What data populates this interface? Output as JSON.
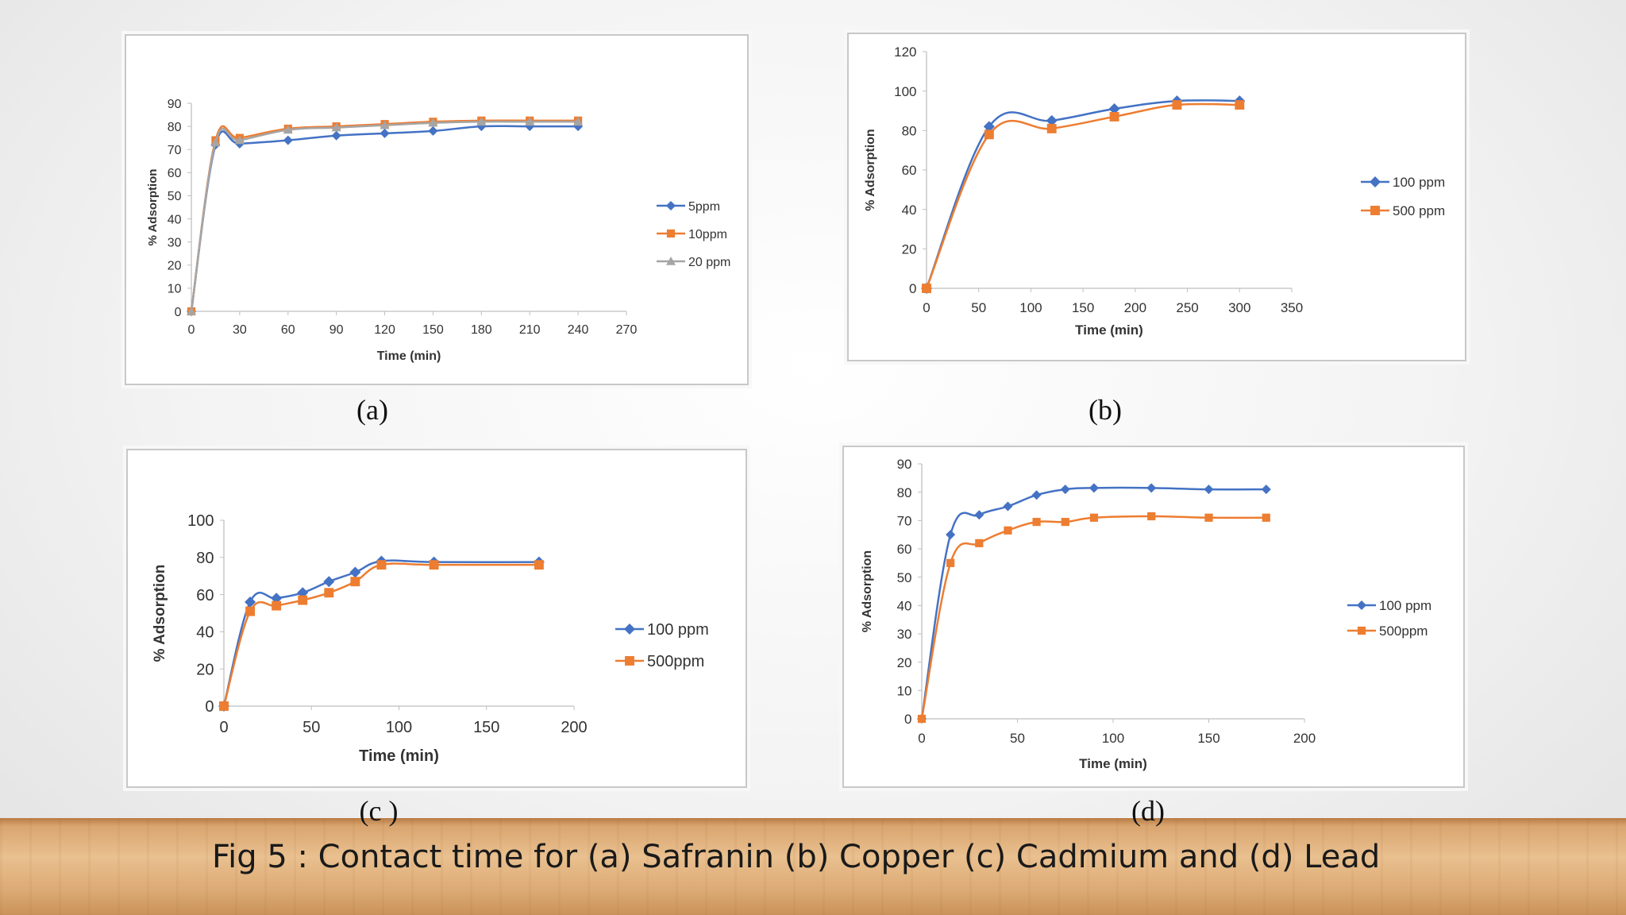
{
  "figure_caption": "Fig 5 : Contact time for (a) Safranin (b) Copper (c) Cadmium and (d) Lead",
  "panel_labels": [
    "(a)",
    "(b)",
    "(c )",
    "(d)"
  ],
  "colors": {
    "blue": "#4472c4",
    "orange": "#ed7d31",
    "gray": "#a5a5a5"
  },
  "chart_data": [
    {
      "type": "line",
      "xlabel": "Time (min)",
      "ylabel": "% Adsorption",
      "xlim": [
        0,
        270
      ],
      "ylim": [
        0,
        90
      ],
      "xticks": [
        0,
        30,
        60,
        90,
        120,
        150,
        180,
        210,
        240,
        270
      ],
      "yticks": [
        0,
        10,
        20,
        30,
        40,
        50,
        60,
        70,
        80,
        90
      ],
      "legend_position": "right",
      "series": [
        {
          "name": "5ppm",
          "marker": "diamond",
          "color": "#4472c4",
          "x": [
            0,
            15,
            30,
            60,
            90,
            120,
            150,
            180,
            210,
            240
          ],
          "y": [
            0,
            72,
            72.5,
            74,
            76,
            77,
            78,
            80,
            80,
            80
          ]
        },
        {
          "name": "10ppm",
          "marker": "square",
          "color": "#ed7d31",
          "x": [
            0,
            15,
            30,
            60,
            90,
            120,
            150,
            180,
            210,
            240
          ],
          "y": [
            0,
            74,
            75,
            79,
            80,
            81,
            82,
            82.5,
            82.5,
            82.5
          ]
        },
        {
          "name": "20 ppm",
          "marker": "triangle",
          "color": "#a5a5a5",
          "x": [
            0,
            15,
            30,
            60,
            90,
            120,
            150,
            180,
            210,
            240
          ],
          "y": [
            0,
            73,
            74,
            78.5,
            79.5,
            80.5,
            81.5,
            82,
            82,
            82
          ]
        }
      ]
    },
    {
      "type": "line",
      "xlabel": "Time (min)",
      "ylabel": "% Adsorption",
      "xlim": [
        0,
        350
      ],
      "ylim": [
        0,
        120
      ],
      "xticks": [
        0,
        50,
        100,
        150,
        200,
        250,
        300,
        350
      ],
      "yticks": [
        0,
        20,
        40,
        60,
        80,
        100,
        120
      ],
      "legend_position": "right",
      "series": [
        {
          "name": "100 ppm",
          "marker": "diamond",
          "color": "#4472c4",
          "x": [
            0,
            60,
            120,
            180,
            240,
            300
          ],
          "y": [
            0,
            82,
            85,
            91,
            95,
            95
          ]
        },
        {
          "name": "500 ppm",
          "marker": "square",
          "color": "#ed7d31",
          "x": [
            0,
            60,
            120,
            180,
            240,
            300
          ],
          "y": [
            0,
            78,
            81,
            87,
            93,
            93
          ]
        }
      ]
    },
    {
      "type": "line",
      "xlabel": "Time (min)",
      "ylabel": "% Adsorption",
      "xlim": [
        0,
        200
      ],
      "ylim": [
        0,
        100
      ],
      "xticks": [
        0,
        50,
        100,
        150,
        200
      ],
      "yticks": [
        0,
        20,
        40,
        60,
        80,
        100
      ],
      "legend_position": "right",
      "series": [
        {
          "name": "100 ppm",
          "marker": "diamond",
          "color": "#4472c4",
          "x": [
            0,
            15,
            30,
            45,
            60,
            75,
            90,
            120,
            180
          ],
          "y": [
            0,
            56,
            58,
            61,
            67,
            72,
            78,
            77.5,
            77.5
          ]
        },
        {
          "name": "500ppm",
          "marker": "square",
          "color": "#ed7d31",
          "x": [
            0,
            15,
            30,
            45,
            60,
            75,
            90,
            120,
            180
          ],
          "y": [
            0,
            51,
            54,
            57,
            61,
            67,
            76,
            76,
            76
          ]
        }
      ]
    },
    {
      "type": "line",
      "xlabel": "Time (min)",
      "ylabel": "% Adsorption",
      "xlim": [
        0,
        200
      ],
      "ylim": [
        0,
        90
      ],
      "xticks": [
        0,
        50,
        100,
        150,
        200
      ],
      "yticks": [
        0,
        10,
        20,
        30,
        40,
        50,
        60,
        70,
        80,
        90
      ],
      "legend_position": "right",
      "series": [
        {
          "name": "100 ppm",
          "marker": "diamond",
          "color": "#4472c4",
          "x": [
            0,
            15,
            30,
            45,
            60,
            75,
            90,
            120,
            150,
            180
          ],
          "y": [
            0,
            65,
            72,
            75,
            79,
            81,
            81.5,
            81.5,
            81,
            81
          ]
        },
        {
          "name": "500ppm",
          "marker": "square",
          "color": "#ed7d31",
          "x": [
            0,
            15,
            30,
            45,
            60,
            75,
            90,
            120,
            150,
            180
          ],
          "y": [
            0,
            55,
            62,
            66.5,
            69.5,
            69.5,
            71,
            71.5,
            71,
            71
          ]
        }
      ]
    }
  ]
}
